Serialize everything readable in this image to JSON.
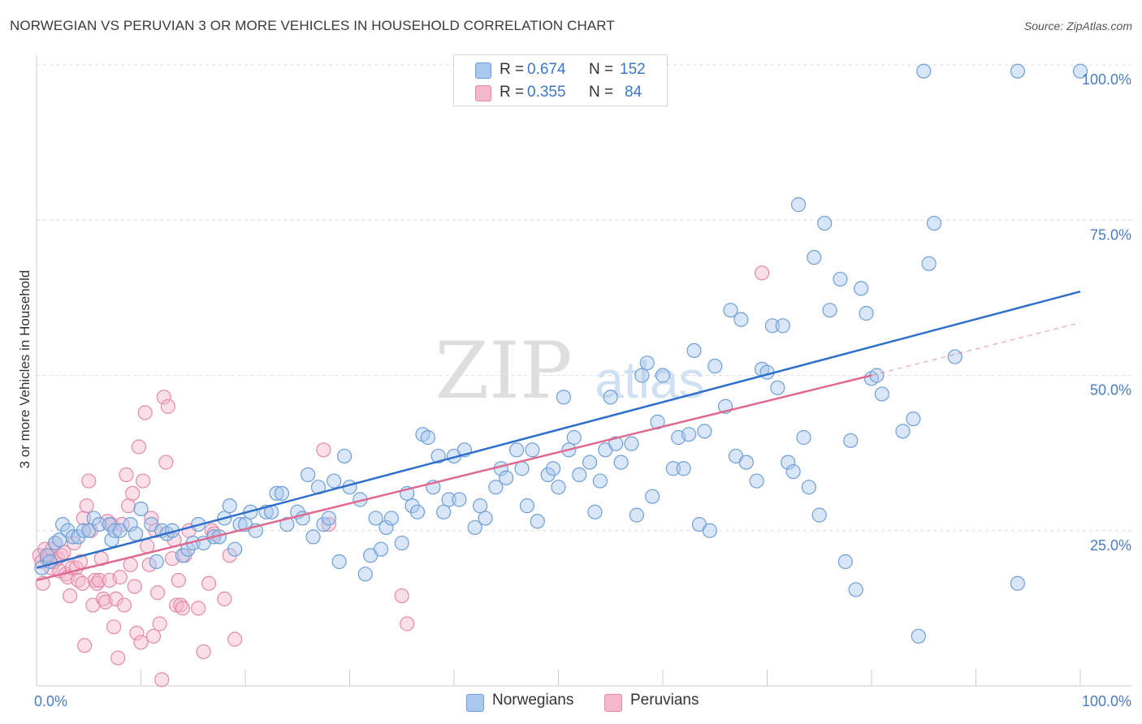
{
  "title": "NORWEGIAN VS PERUVIAN 3 OR MORE VEHICLES IN HOUSEHOLD CORRELATION CHART",
  "source": "Source: ZipAtlas.com",
  "watermark": {
    "zip": "ZIP",
    "atlas": "atlas"
  },
  "legend_top": {
    "r_label": "R =",
    "n_label": "N =",
    "rows": [
      {
        "r": "0.674",
        "n": "152"
      },
      {
        "r": "0.355",
        "n": "84"
      }
    ]
  },
  "colors": {
    "blue_fill": "#a9c8ee",
    "blue_stroke": "#6e9fd8",
    "blue_line": "#2f6fcc",
    "pink_fill": "#f4b8cb",
    "pink_stroke": "#e58aa6",
    "pink_line": "#e0698f",
    "axis_text": "#4a7cc4"
  },
  "chart_data": {
    "type": "scatter",
    "title": "NORWEGIAN VS PERUVIAN 3 OR MORE VEHICLES IN HOUSEHOLD CORRELATION CHART",
    "xlabel": "",
    "ylabel": "3 or more Vehicles in Household",
    "xlim": [
      0,
      100
    ],
    "ylim": [
      0,
      100
    ],
    "x_tick_labels": [
      "0.0%",
      "100.0%"
    ],
    "y_tick_values": [
      25,
      50,
      75,
      100
    ],
    "y_tick_labels": [
      "25.0%",
      "50.0%",
      "75.0%",
      "100.0%"
    ],
    "grid": true,
    "legend_position": "top-center",
    "series": [
      {
        "name": "Norwegians",
        "r": 0.674,
        "n": 152,
        "trend": {
          "x": [
            0,
            100
          ],
          "y": [
            19,
            63.5
          ],
          "style": "solid"
        },
        "points": [
          [
            0.5,
            19
          ],
          [
            1,
            21
          ],
          [
            1.3,
            20
          ],
          [
            1.8,
            23
          ],
          [
            2.2,
            23.5
          ],
          [
            2.5,
            26
          ],
          [
            3,
            25
          ],
          [
            3.5,
            24
          ],
          [
            4,
            24
          ],
          [
            4.5,
            25
          ],
          [
            5,
            25
          ],
          [
            5.5,
            27
          ],
          [
            6,
            26
          ],
          [
            7,
            26
          ],
          [
            7.2,
            23.5
          ],
          [
            7.5,
            25
          ],
          [
            8,
            25
          ],
          [
            9,
            26
          ],
          [
            9.5,
            24.5
          ],
          [
            10,
            28.5
          ],
          [
            11,
            26
          ],
          [
            12,
            25
          ],
          [
            11.5,
            20
          ],
          [
            12.5,
            24.5
          ],
          [
            13,
            25
          ],
          [
            14,
            21
          ],
          [
            14.5,
            22
          ],
          [
            15,
            23
          ],
          [
            15.5,
            26
          ],
          [
            16,
            23
          ],
          [
            17,
            24
          ],
          [
            17.5,
            24
          ],
          [
            18,
            27
          ],
          [
            18.5,
            29
          ],
          [
            19,
            22
          ],
          [
            19.5,
            26
          ],
          [
            20,
            26
          ],
          [
            20.5,
            28
          ],
          [
            21,
            25
          ],
          [
            22,
            28
          ],
          [
            22.5,
            28
          ],
          [
            23,
            31
          ],
          [
            23.5,
            31
          ],
          [
            24,
            26
          ],
          [
            25,
            28
          ],
          [
            25.5,
            27
          ],
          [
            26,
            34
          ],
          [
            26.5,
            24
          ],
          [
            27,
            32
          ],
          [
            27.5,
            26
          ],
          [
            28,
            27
          ],
          [
            28.5,
            33
          ],
          [
            29,
            20
          ],
          [
            29.5,
            37
          ],
          [
            30,
            32
          ],
          [
            31,
            30
          ],
          [
            31.5,
            18
          ],
          [
            32,
            21
          ],
          [
            32.5,
            27
          ],
          [
            33,
            22
          ],
          [
            33.5,
            25.5
          ],
          [
            34,
            27
          ],
          [
            35,
            23
          ],
          [
            35.5,
            31
          ],
          [
            36,
            29
          ],
          [
            36.5,
            28
          ],
          [
            37,
            40.5
          ],
          [
            37.5,
            40
          ],
          [
            38,
            32
          ],
          [
            38.5,
            37
          ],
          [
            39,
            28
          ],
          [
            39.5,
            30
          ],
          [
            40,
            37
          ],
          [
            40.5,
            30
          ],
          [
            41,
            38
          ],
          [
            42,
            25.5
          ],
          [
            42.5,
            29
          ],
          [
            43,
            27
          ],
          [
            44,
            32
          ],
          [
            44.5,
            35
          ],
          [
            45,
            33.5
          ],
          [
            46,
            38
          ],
          [
            46.5,
            35
          ],
          [
            47,
            29
          ],
          [
            47.5,
            38
          ],
          [
            48,
            26.5
          ],
          [
            49,
            34
          ],
          [
            49.5,
            35
          ],
          [
            50,
            32
          ],
          [
            50.5,
            46.5
          ],
          [
            51,
            38
          ],
          [
            51.5,
            40
          ],
          [
            52,
            34
          ],
          [
            53,
            36
          ],
          [
            53.5,
            28
          ],
          [
            54,
            33
          ],
          [
            54.5,
            38
          ],
          [
            55,
            46.5
          ],
          [
            55.5,
            39
          ],
          [
            56,
            36
          ],
          [
            57,
            39
          ],
          [
            57.5,
            27.5
          ],
          [
            58,
            50
          ],
          [
            58.5,
            52
          ],
          [
            59,
            30.5
          ],
          [
            59.5,
            42.5
          ],
          [
            60,
            50
          ],
          [
            61,
            35
          ],
          [
            61.5,
            40
          ],
          [
            62,
            35
          ],
          [
            62.5,
            40.5
          ],
          [
            63,
            54
          ],
          [
            63.5,
            26
          ],
          [
            64,
            41
          ],
          [
            64.5,
            25
          ],
          [
            65,
            51.5
          ],
          [
            66,
            45
          ],
          [
            66.5,
            60.5
          ],
          [
            67,
            37
          ],
          [
            67.5,
            59
          ],
          [
            68,
            36
          ],
          [
            69,
            33
          ],
          [
            69.5,
            51
          ],
          [
            70,
            50.5
          ],
          [
            70.5,
            58
          ],
          [
            71,
            48
          ],
          [
            71.5,
            58
          ],
          [
            72,
            36
          ],
          [
            72.5,
            34.5
          ],
          [
            73,
            77.5
          ],
          [
            73.5,
            40
          ],
          [
            74,
            32
          ],
          [
            74.5,
            69
          ],
          [
            75,
            27.5
          ],
          [
            75.5,
            74.5
          ],
          [
            76,
            60.5
          ],
          [
            77,
            65.5
          ],
          [
            77.5,
            20
          ],
          [
            78,
            39.5
          ],
          [
            78.5,
            15.5
          ],
          [
            79,
            64
          ],
          [
            79.5,
            60
          ],
          [
            80,
            49.5
          ],
          [
            80.5,
            50
          ],
          [
            81,
            47
          ],
          [
            83,
            41
          ],
          [
            84,
            43
          ],
          [
            84.5,
            8
          ],
          [
            85.5,
            68
          ],
          [
            86,
            74.5
          ],
          [
            85,
            99
          ],
          [
            88,
            53
          ],
          [
            94,
            16.5
          ],
          [
            94,
            99
          ],
          [
            100,
            99
          ]
        ]
      },
      {
        "name": "Peruvians",
        "r": 0.355,
        "n": 84,
        "trend": {
          "x": [
            0,
            80
          ],
          "y": [
            17,
            50
          ],
          "style": "solid"
        },
        "trend_extension": {
          "x": [
            80,
            100
          ],
          "y": [
            50,
            58.5
          ],
          "style": "dashed"
        },
        "points": [
          [
            0.3,
            21
          ],
          [
            0.5,
            20
          ],
          [
            0.6,
            16.5
          ],
          [
            0.8,
            22
          ],
          [
            1,
            20.5
          ],
          [
            1.2,
            21
          ],
          [
            1.4,
            19
          ],
          [
            1.5,
            22
          ],
          [
            1.7,
            20
          ],
          [
            1.8,
            23
          ],
          [
            2,
            20.5
          ],
          [
            2.2,
            18.5
          ],
          [
            2.4,
            21
          ],
          [
            2.6,
            21.5
          ],
          [
            2.8,
            18
          ],
          [
            3,
            17.5
          ],
          [
            3.2,
            14.5
          ],
          [
            3.4,
            19
          ],
          [
            3.6,
            23
          ],
          [
            3.8,
            19
          ],
          [
            4,
            17
          ],
          [
            4.2,
            20
          ],
          [
            4.4,
            16.5
          ],
          [
            4.5,
            27
          ],
          [
            4.6,
            6.5
          ],
          [
            4.8,
            29
          ],
          [
            5,
            33
          ],
          [
            5.2,
            25
          ],
          [
            5.4,
            13
          ],
          [
            5.6,
            17
          ],
          [
            5.8,
            16.5
          ],
          [
            6,
            17
          ],
          [
            6.2,
            20.5
          ],
          [
            6.4,
            14
          ],
          [
            6.6,
            13.5
          ],
          [
            6.8,
            26.5
          ],
          [
            7,
            17
          ],
          [
            7.2,
            26
          ],
          [
            7.4,
            9.5
          ],
          [
            7.6,
            14
          ],
          [
            7.8,
            4.5
          ],
          [
            8,
            17.5
          ],
          [
            8.2,
            26
          ],
          [
            8.4,
            13
          ],
          [
            8.6,
            34
          ],
          [
            8.8,
            29
          ],
          [
            9,
            19.5
          ],
          [
            9.2,
            31
          ],
          [
            9.4,
            16
          ],
          [
            9.6,
            8.5
          ],
          [
            9.8,
            38.5
          ],
          [
            10,
            7
          ],
          [
            10.2,
            33
          ],
          [
            10.4,
            44
          ],
          [
            10.6,
            22.5
          ],
          [
            10.8,
            19.5
          ],
          [
            11,
            27
          ],
          [
            11.2,
            8
          ],
          [
            11.4,
            25
          ],
          [
            11.6,
            15
          ],
          [
            11.8,
            10
          ],
          [
            12,
            1
          ],
          [
            12.2,
            46.5
          ],
          [
            12.4,
            36
          ],
          [
            12.6,
            45
          ],
          [
            13,
            20.5
          ],
          [
            13.2,
            23.5
          ],
          [
            13.4,
            13
          ],
          [
            13.6,
            17
          ],
          [
            13.8,
            13
          ],
          [
            14,
            12.5
          ],
          [
            14.2,
            21
          ],
          [
            14.6,
            25
          ],
          [
            15.5,
            12.5
          ],
          [
            16,
            5.5
          ],
          [
            16.5,
            16.5
          ],
          [
            16.8,
            25
          ],
          [
            17,
            24.5
          ],
          [
            18,
            14
          ],
          [
            18.5,
            21
          ],
          [
            19,
            7.5
          ],
          [
            27.5,
            38
          ],
          [
            28,
            26
          ],
          [
            35,
            14.5
          ],
          [
            35.5,
            10
          ],
          [
            69.5,
            66.5
          ]
        ]
      }
    ]
  },
  "bottom_legend": [
    {
      "label": "Norwegians"
    },
    {
      "label": "Peruvians"
    }
  ]
}
